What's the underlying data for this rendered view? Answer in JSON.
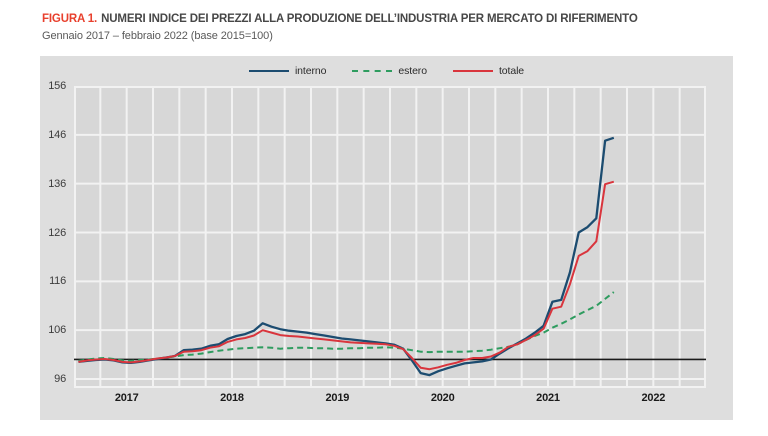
{
  "title": {
    "prefix": "FIGURA 1.",
    "text": "NUMERI INDICE DEI PREZZI ALLA PRODUZIONE DELL’INDUSTRIA PER MERCATO DI RIFERIMENTO",
    "subtitle": "Gennaio 2017 –  febbraio 2022 (base 2015=100)"
  },
  "colors": {
    "title_prefix_red": "#e8402d",
    "interno_blue": "#1c4c70",
    "estero_green": "#2e9c5f",
    "totale_red": "#d9353d",
    "baseline_black": "#1a1a1a",
    "plot_background": "#d7d7d7",
    "box_background": "#dedede",
    "gridline_white": "#f2f2f2"
  },
  "legend": [
    {
      "label": "interno",
      "color": "#1c4c70",
      "dashed": false
    },
    {
      "label": "estero",
      "color": "#2e9c5f",
      "dashed": true
    },
    {
      "label": "totale",
      "color": "#d9353d",
      "dashed": false
    }
  ],
  "chart_data": {
    "type": "line",
    "title": "Numeri indice dei prezzi alla produzione dell'industria per mercato di riferimento",
    "x_unit": "month",
    "x_start": "2017-01",
    "x_data_end": "2022-02",
    "x_axis_months_total": 72,
    "x_tick_labels": [
      "2017",
      "2018",
      "2019",
      "2020",
      "2021",
      "2022"
    ],
    "y_ticks": [
      96,
      106,
      116,
      126,
      136,
      146,
      156
    ],
    "ylim": [
      93.6,
      156
    ],
    "baseline_value": 100,
    "grid": "white lines, quarterly vertical, every 10 units horizontal",
    "legend_position": "top-center",
    "series": [
      {
        "name": "interno",
        "style": "solid",
        "color": "#1c4c70",
        "values": [
          99.5,
          99.7,
          99.9,
          100.0,
          99.8,
          99.4,
          99.3,
          99.5,
          99.8,
          100.1,
          100.4,
          100.7,
          101.9,
          102.0,
          102.2,
          102.8,
          103.1,
          104.2,
          104.8,
          105.2,
          105.9,
          107.4,
          106.7,
          106.2,
          105.9,
          105.7,
          105.5,
          105.2,
          104.9,
          104.6,
          104.3,
          104.1,
          103.9,
          103.7,
          103.5,
          103.3,
          103.0,
          102.2,
          99.8,
          97.2,
          96.8,
          97.6,
          98.2,
          98.7,
          99.2,
          99.4,
          99.6,
          100.0,
          101.2,
          102.3,
          103.3,
          104.3,
          105.5,
          106.9,
          111.8,
          112.2,
          117.8,
          126.0,
          127.1,
          128.9,
          144.8,
          145.4
        ]
      },
      {
        "name": "estero",
        "style": "dashed",
        "color": "#2e9c5f",
        "values": [
          99.7,
          100.0,
          100.2,
          100.3,
          100.1,
          99.8,
          99.7,
          99.9,
          100.0,
          100.2,
          100.4,
          100.6,
          100.9,
          101.0,
          101.2,
          101.5,
          101.8,
          102.0,
          102.2,
          102.3,
          102.4,
          102.5,
          102.4,
          102.2,
          102.3,
          102.4,
          102.4,
          102.3,
          102.3,
          102.2,
          102.2,
          102.3,
          102.3,
          102.4,
          102.4,
          102.5,
          102.4,
          102.2,
          101.9,
          101.6,
          101.5,
          101.6,
          101.6,
          101.6,
          101.6,
          101.7,
          101.8,
          102.0,
          102.3,
          102.6,
          103.1,
          104.0,
          104.8,
          105.5,
          106.5,
          107.3,
          108.2,
          109.2,
          110.1,
          111.0,
          112.4,
          113.8
        ]
      },
      {
        "name": "totale",
        "style": "solid",
        "color": "#d9353d",
        "values": [
          99.5,
          99.8,
          100.0,
          100.1,
          99.9,
          99.5,
          99.4,
          99.6,
          99.9,
          100.2,
          100.4,
          100.7,
          101.6,
          101.7,
          101.9,
          102.4,
          102.7,
          103.6,
          104.1,
          104.4,
          104.9,
          106.0,
          105.5,
          105.0,
          104.8,
          104.7,
          104.5,
          104.3,
          104.1,
          103.9,
          103.7,
          103.5,
          103.4,
          103.3,
          103.2,
          103.1,
          102.8,
          102.1,
          100.3,
          98.3,
          98.0,
          98.4,
          98.9,
          99.3,
          99.9,
          100.3,
          100.3,
          100.6,
          101.4,
          102.6,
          103.1,
          104.0,
          105.0,
          106.3,
          110.4,
          110.8,
          115.4,
          121.2,
          122.2,
          124.2,
          135.9,
          136.4
        ]
      }
    ]
  }
}
